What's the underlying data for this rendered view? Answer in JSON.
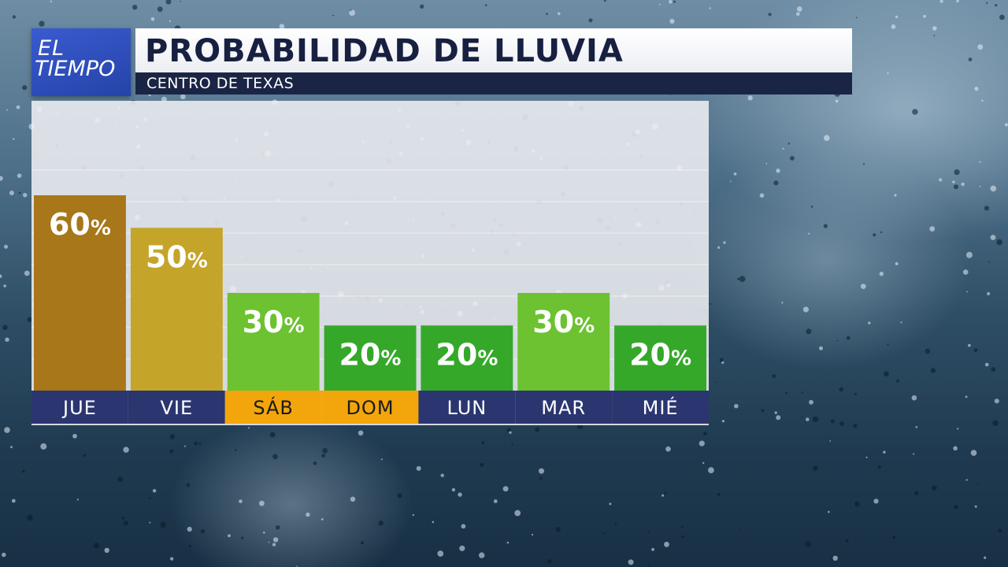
{
  "header": {
    "logo_line1": "EL",
    "logo_line2": "TIEMPO",
    "title": "PROBABILIDAD DE LLUVIA",
    "subtitle": "CENTRO DE TEXAS"
  },
  "colors": {
    "brand_blue": "#2a4bb8",
    "title_navy": "#172040",
    "weekday_bar": "#2b3670",
    "weekend_bar": "#f2a60c",
    "bar_colors": [
      "#a8771a",
      "#c4a52a",
      "#6cc230",
      "#35a82a",
      "#35a82a",
      "#6cc230",
      "#35a82a"
    ]
  },
  "chart_data": {
    "type": "bar",
    "categories": [
      "JUE",
      "VIE",
      "SÁB",
      "DOM",
      "LUN",
      "MAR",
      "MIÉ"
    ],
    "values": [
      60,
      50,
      30,
      20,
      20,
      30,
      20
    ],
    "value_suffix": "%",
    "weekend": [
      false,
      false,
      true,
      true,
      false,
      false,
      false
    ],
    "ylim": [
      0,
      100
    ],
    "grid": true,
    "title": "PROBABILIDAD DE LLUVIA",
    "subtitle": "CENTRO DE TEXAS"
  }
}
